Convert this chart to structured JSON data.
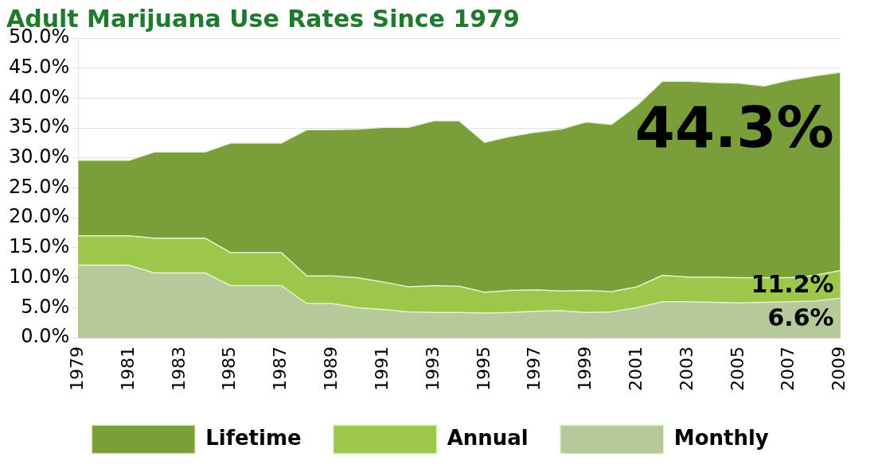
{
  "chart_data": {
    "type": "area",
    "title": "Adult Marijuana Use Rates Since 1979",
    "categories": [
      "1979",
      null,
      "1981",
      null,
      "1983",
      null,
      "1985",
      null,
      "1987",
      null,
      "1989",
      null,
      "1991",
      null,
      "1993",
      null,
      "1995",
      null,
      "1997",
      null,
      "1999",
      null,
      "2001",
      null,
      "2003",
      null,
      "2005",
      null,
      "2007",
      null,
      "2009"
    ],
    "series": [
      {
        "name": "Lifetime",
        "color": "#7a9e3a",
        "values": [
          29.6,
          29.6,
          29.6,
          31.0,
          31.0,
          31.0,
          32.5,
          32.5,
          32.5,
          34.7,
          34.7,
          34.8,
          35.1,
          35.1,
          36.2,
          36.2,
          32.6,
          33.6,
          34.3,
          34.8,
          36.0,
          35.6,
          38.8,
          42.8,
          42.8,
          42.6,
          42.5,
          42.0,
          43.0,
          43.7,
          44.3
        ],
        "value_labels": [
          null,
          null,
          null,
          null,
          null,
          null,
          null,
          null,
          null,
          null,
          null,
          null,
          null,
          null,
          null,
          null,
          null,
          null,
          null,
          null,
          null,
          null,
          null,
          null,
          null,
          null,
          null,
          null,
          null,
          null,
          "44.3%"
        ]
      },
      {
        "name": "Annual",
        "color": "#9cc74a",
        "values": [
          17.0,
          17.0,
          17.0,
          16.6,
          16.6,
          16.6,
          14.2,
          14.2,
          14.2,
          10.3,
          10.3,
          10.0,
          9.3,
          8.5,
          8.7,
          8.6,
          7.6,
          7.9,
          8.0,
          7.8,
          7.9,
          7.7,
          8.5,
          10.4,
          10.1,
          10.1,
          10.0,
          10.0,
          10.0,
          10.4,
          11.2
        ],
        "value_labels": [
          null,
          null,
          null,
          null,
          null,
          null,
          null,
          null,
          null,
          null,
          null,
          null,
          null,
          null,
          null,
          null,
          null,
          null,
          null,
          null,
          null,
          null,
          null,
          null,
          null,
          null,
          null,
          null,
          null,
          null,
          "11.2%"
        ]
      },
      {
        "name": "Monthly",
        "color": "#b5c99a",
        "values": [
          12.1,
          12.1,
          12.1,
          10.8,
          10.8,
          10.8,
          8.7,
          8.7,
          8.7,
          5.7,
          5.7,
          5.0,
          4.7,
          4.3,
          4.2,
          4.2,
          4.1,
          4.2,
          4.4,
          4.5,
          4.2,
          4.3,
          5.0,
          6.0,
          6.0,
          5.9,
          5.8,
          5.9,
          6.0,
          6.1,
          6.6
        ],
        "value_labels": [
          null,
          null,
          null,
          null,
          null,
          null,
          null,
          null,
          null,
          null,
          null,
          null,
          null,
          null,
          null,
          null,
          null,
          null,
          null,
          null,
          null,
          null,
          null,
          null,
          null,
          null,
          null,
          null,
          null,
          null,
          "6.6%"
        ]
      }
    ],
    "ylim": [
      0,
      50
    ],
    "yticks": [
      {
        "value": 0,
        "label": "0.0%"
      },
      {
        "value": 5,
        "label": "5.0%"
      },
      {
        "value": 10,
        "label": "10.0%"
      },
      {
        "value": 15,
        "label": "15.0%"
      },
      {
        "value": 20,
        "label": "20.0%"
      },
      {
        "value": 25,
        "label": "25.0%"
      },
      {
        "value": 30,
        "label": "30.0%"
      },
      {
        "value": 35,
        "label": "35.0%"
      },
      {
        "value": 40,
        "label": "40.0%"
      },
      {
        "value": 45,
        "label": "45.0%"
      },
      {
        "value": 50,
        "label": "50.0%"
      }
    ],
    "grid": "y",
    "legend": "bottom"
  }
}
